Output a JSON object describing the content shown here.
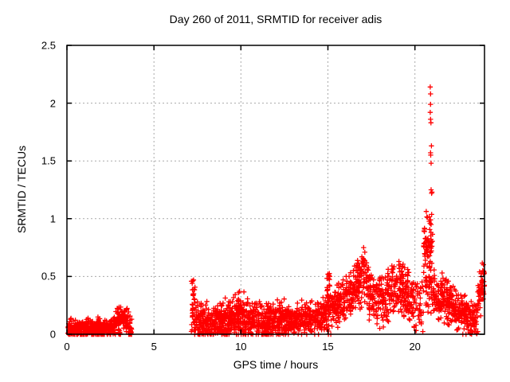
{
  "chart_data": {
    "type": "scatter",
    "title": "Day 260 of 2011, SRMTID for receiver adis",
    "xlabel": "GPS time / hours",
    "ylabel": "SRMTID / TECUs",
    "xlim": [
      0,
      24
    ],
    "ylim": [
      0,
      2.5
    ],
    "xticks": {
      "values": [
        0,
        5,
        10,
        15,
        20
      ],
      "labels": [
        "0",
        "5",
        "10",
        "15",
        "20"
      ]
    },
    "yticks": {
      "values": [
        0,
        0.5,
        1,
        1.5,
        2,
        2.5
      ],
      "labels": [
        "0",
        "0.5",
        "1",
        "1.5",
        "2",
        "2.5"
      ]
    },
    "grid": {
      "visible": true,
      "style": "dotted",
      "color": "#a9a9a9"
    },
    "marker": {
      "shape": "plus",
      "color": "#ff0000",
      "size": 7
    },
    "legend": "none",
    "series": [
      {
        "name": "SRMTID",
        "encoding": "density-bands",
        "bands_format": "[t_start_hours, t_end_hours, center_start_TECU, center_end_TECU, sd_TECU, n_points]",
        "bands": [
          [
            0.05,
            1.0,
            0.04,
            0.05,
            0.035,
            150
          ],
          [
            1.0,
            2.05,
            0.05,
            0.05,
            0.04,
            150
          ],
          [
            2.05,
            2.6,
            0.04,
            0.06,
            0.035,
            80
          ],
          [
            2.6,
            3.3,
            0.08,
            0.16,
            0.05,
            85
          ],
          [
            3.3,
            3.72,
            0.14,
            0.04,
            0.05,
            55
          ],
          [
            2.95,
            3.08,
            0.012,
            0.012,
            0.012,
            12
          ],
          [
            3.55,
            3.68,
            0.012,
            0.012,
            0.012,
            8
          ],
          [
            7.15,
            7.38,
            0.24,
            0.2,
            0.12,
            40
          ],
          [
            7.38,
            8.1,
            0.15,
            0.12,
            0.08,
            85
          ],
          [
            7.5,
            8.1,
            0.02,
            0.02,
            0.02,
            16
          ],
          [
            8.1,
            9.05,
            0.11,
            0.12,
            0.075,
            130
          ],
          [
            8.6,
            9.05,
            0.02,
            0.02,
            0.02,
            12
          ],
          [
            9.05,
            9.7,
            0.13,
            0.16,
            0.08,
            100
          ],
          [
            9.3,
            9.45,
            0.02,
            0.02,
            0.015,
            6
          ],
          [
            9.7,
            10.45,
            0.17,
            0.14,
            0.09,
            110
          ],
          [
            10.1,
            10.3,
            0.03,
            0.03,
            0.02,
            8
          ],
          [
            10.45,
            11.6,
            0.12,
            0.12,
            0.075,
            160
          ],
          [
            11.3,
            11.55,
            0.01,
            0.01,
            0.01,
            12
          ],
          [
            11.6,
            12.5,
            0.14,
            0.13,
            0.08,
            130
          ],
          [
            12.5,
            13.5,
            0.11,
            0.12,
            0.06,
            140
          ],
          [
            13.5,
            14.93,
            0.13,
            0.16,
            0.06,
            190
          ],
          [
            14.93,
            15.12,
            0.3,
            0.3,
            0.13,
            40
          ],
          [
            15.12,
            15.7,
            0.22,
            0.26,
            0.09,
            80
          ],
          [
            15.7,
            16.6,
            0.3,
            0.38,
            0.09,
            110
          ],
          [
            16.6,
            17.35,
            0.44,
            0.46,
            0.12,
            95
          ],
          [
            17.35,
            18.45,
            0.35,
            0.28,
            0.1,
            130
          ],
          [
            18.45,
            19.35,
            0.36,
            0.43,
            0.11,
            110
          ],
          [
            19.35,
            19.95,
            0.35,
            0.28,
            0.1,
            75
          ],
          [
            19.95,
            20.5,
            0.25,
            0.25,
            0.13,
            40
          ],
          [
            20.5,
            21.02,
            0.72,
            0.8,
            0.13,
            75
          ],
          [
            20.55,
            21.02,
            0.38,
            0.38,
            0.1,
            35
          ],
          [
            21.02,
            22.15,
            0.32,
            0.27,
            0.09,
            150
          ],
          [
            22.15,
            23.0,
            0.22,
            0.17,
            0.08,
            115
          ],
          [
            23.0,
            23.62,
            0.13,
            0.14,
            0.08,
            60
          ],
          [
            23.15,
            23.28,
            0.02,
            0.02,
            0.012,
            12
          ],
          [
            23.62,
            24.0,
            0.27,
            0.48,
            0.1,
            55
          ]
        ],
        "points": [
          [
            20.88,
            2.14
          ],
          [
            20.9,
            2.08
          ],
          [
            20.9,
            1.99
          ],
          [
            20.88,
            1.92
          ],
          [
            20.9,
            1.86
          ],
          [
            20.92,
            1.83
          ],
          [
            20.95,
            1.63
          ],
          [
            20.9,
            1.57
          ],
          [
            20.91,
            1.55
          ],
          [
            20.93,
            1.48
          ],
          [
            20.93,
            1.25
          ],
          [
            20.96,
            1.22
          ],
          [
            20.98,
            1.23
          ],
          [
            20.9,
            0.99
          ],
          [
            20.87,
            0.96
          ],
          [
            20.93,
            0.95
          ],
          [
            7.2,
            0.44
          ],
          [
            7.28,
            0.47
          ],
          [
            3.42,
            0.21
          ],
          [
            15.0,
            0.52
          ],
          [
            17.05,
            0.75
          ],
          [
            17.12,
            0.71
          ],
          [
            16.95,
            0.67
          ],
          [
            19.08,
            0.63
          ],
          [
            19.15,
            0.6
          ],
          [
            21.78,
            0.46
          ],
          [
            23.9,
            0.55
          ],
          [
            23.95,
            0.52
          ]
        ]
      }
    ],
    "seed": 2011260
  }
}
